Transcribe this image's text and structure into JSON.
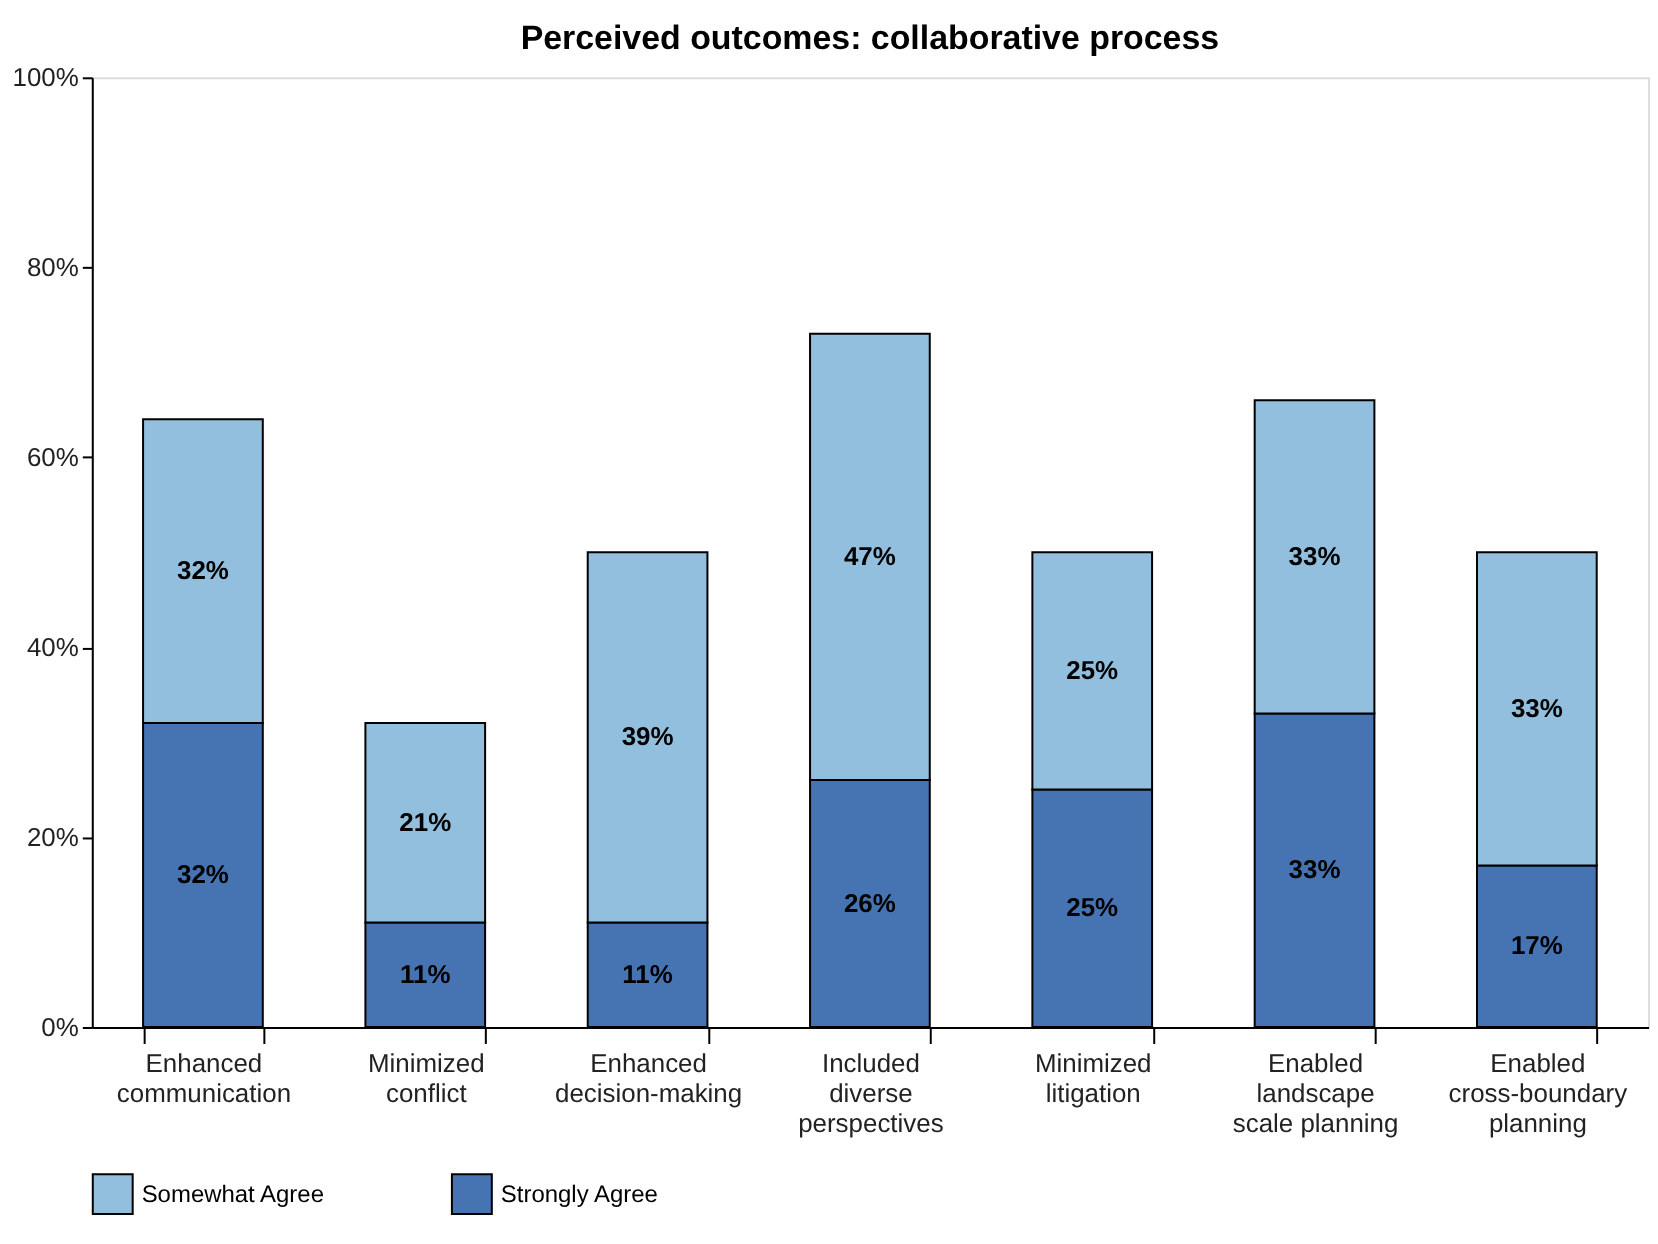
{
  "chart_data": {
    "type": "bar",
    "title": "Perceived outcomes: collaborative process",
    "categories": [
      "Enhanced\ncommunication",
      "Minimized\nconflict",
      "Enhanced\ndecision-making",
      "Included\ndiverse\nperspectives",
      "Minimized\nlitigation",
      "Enabled\nlandscape\nscale planning",
      "Enabled\ncross-boundary\nplanning"
    ],
    "stacked": true,
    "series": [
      {
        "name": "Strongly Agree",
        "color": "#4674b3",
        "values": [
          32,
          11,
          11,
          26,
          25,
          33,
          17
        ],
        "value_labels": [
          "32%",
          "11%",
          "11%",
          "26%",
          "25%",
          "33%",
          "17%"
        ]
      },
      {
        "name": "Somewhat Agree",
        "color": "#92bfdd",
        "values": [
          32,
          21,
          39,
          47,
          25,
          33,
          33
        ],
        "value_labels": [
          "32%",
          "21%",
          "39%",
          "47%",
          "25%",
          "33%",
          "33%"
        ]
      }
    ],
    "ylim": [
      0,
      100
    ],
    "yticks": [
      {
        "value": 0,
        "label": "0%"
      },
      {
        "value": 20,
        "label": "20%"
      },
      {
        "value": 40,
        "label": "40%"
      },
      {
        "value": 60,
        "label": "60%"
      },
      {
        "value": 80,
        "label": "80%"
      },
      {
        "value": 100,
        "label": "100%"
      }
    ],
    "grid": false,
    "legend": "bottom"
  }
}
